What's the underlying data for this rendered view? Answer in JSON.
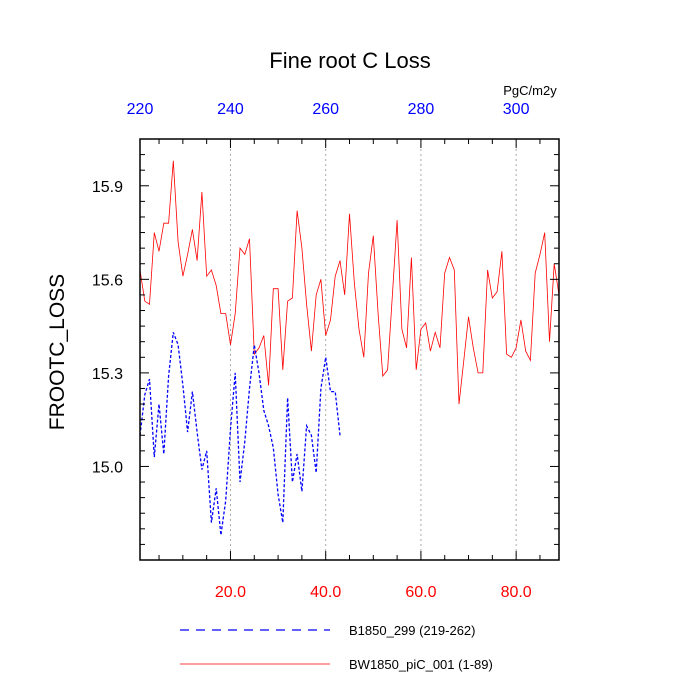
{
  "chart_data": {
    "type": "line",
    "title": "Fine root C Loss",
    "ylabel": "FROOTC_LOSS",
    "top_axis_unit": "PgC/m2y",
    "xlim": [
      1,
      89
    ],
    "ylim": [
      14.7,
      16.05
    ],
    "bottom_ticks": [
      {
        "value": 20,
        "label": "20.0"
      },
      {
        "value": 40,
        "label": "40.0"
      },
      {
        "value": 60,
        "label": "60.0"
      },
      {
        "value": 80,
        "label": "80.0"
      }
    ],
    "top_ticks": [
      {
        "value": 1,
        "label": "220"
      },
      {
        "value": 20,
        "label": "240"
      },
      {
        "value": 40,
        "label": "260"
      },
      {
        "value": 60,
        "label": "280"
      },
      {
        "value": 80,
        "label": "300"
      }
    ],
    "y_ticks": [
      {
        "value": 15.0,
        "label": "15.0"
      },
      {
        "value": 15.3,
        "label": "15.3"
      },
      {
        "value": 15.6,
        "label": "15.6"
      },
      {
        "value": 15.9,
        "label": "15.9"
      }
    ],
    "grid": "vertical dotted at bottom ticks",
    "colors": {
      "bottom_axis": "#ff0000",
      "top_axis": "#0000ff",
      "red_series": "#ff0000",
      "blue_series": "#0000ff"
    },
    "legend_position": "bottom",
    "series": [
      {
        "name": "B1850_299 (219-262)",
        "color": "#0000ff",
        "style": "dashed",
        "x_start": 1,
        "values": [
          15.1,
          15.23,
          15.28,
          15.03,
          15.2,
          15.04,
          15.29,
          15.43,
          15.39,
          15.26,
          15.11,
          15.24,
          15.11,
          14.99,
          15.05,
          14.82,
          14.93,
          14.78,
          14.89,
          15.12,
          15.3,
          14.95,
          15.08,
          15.25,
          15.39,
          15.3,
          15.18,
          15.13,
          15.06,
          14.91,
          14.82,
          15.22,
          14.95,
          15.04,
          14.92,
          15.13,
          15.1,
          14.98,
          15.25,
          15.35,
          15.24,
          15.24,
          15.1
        ]
      },
      {
        "name": "BW1850_piC_001 (1-89)",
        "color": "#ff0000",
        "style": "solid",
        "x_start": 1,
        "values": [
          15.63,
          15.53,
          15.52,
          15.75,
          15.69,
          15.78,
          15.78,
          15.98,
          15.72,
          15.61,
          15.68,
          15.76,
          15.66,
          15.88,
          15.61,
          15.63,
          15.58,
          15.49,
          15.49,
          15.39,
          15.49,
          15.7,
          15.68,
          15.73,
          15.36,
          15.38,
          15.42,
          15.26,
          15.57,
          15.57,
          15.31,
          15.53,
          15.54,
          15.82,
          15.7,
          15.52,
          15.37,
          15.55,
          15.6,
          15.42,
          15.47,
          15.61,
          15.66,
          15.55,
          15.81,
          15.59,
          15.44,
          15.35,
          15.62,
          15.74,
          15.49,
          15.29,
          15.31,
          15.55,
          15.79,
          15.44,
          15.38,
          15.67,
          15.31,
          15.44,
          15.46,
          15.37,
          15.43,
          15.38,
          15.62,
          15.67,
          15.63,
          15.2,
          15.34,
          15.48,
          15.38,
          15.3,
          15.3,
          15.63,
          15.54,
          15.56,
          15.69,
          15.36,
          15.35,
          15.38,
          15.47,
          15.37,
          15.34,
          15.62,
          15.68,
          15.75,
          15.4,
          15.65,
          15.55
        ]
      }
    ]
  }
}
